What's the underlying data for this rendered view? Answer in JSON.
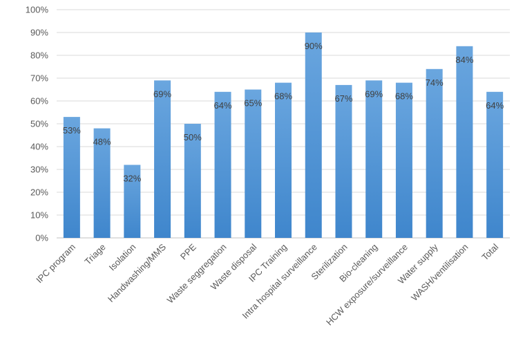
{
  "chart_data": {
    "type": "bar",
    "title": "",
    "xlabel": "",
    "ylabel": "",
    "ylim": [
      0,
      100
    ],
    "y_ticks": [
      "0%",
      "10%",
      "20%",
      "30%",
      "40%",
      "50%",
      "60%",
      "70%",
      "80%",
      "90%",
      "100%"
    ],
    "grid": true,
    "legend": "none",
    "bar_color": "#5B9BD5",
    "categories": [
      "IPC program",
      "Triage",
      "Isolation",
      "Handwashing/MMS",
      "PPE",
      "Waste seggregation",
      "Waste disposal",
      "IPC Training",
      "Intra hospital surveillance",
      "Sterilization",
      "Bio-cleaning",
      "HCW exposure/surveillance",
      "Water supply",
      "WASH/ventilisation",
      "Total"
    ],
    "values": [
      53,
      48,
      32,
      69,
      50,
      64,
      65,
      68,
      90,
      67,
      69,
      68,
      74,
      84,
      64
    ],
    "data_labels": [
      "53%",
      "48%",
      "32%",
      "69%",
      "50%",
      "64%",
      "65%",
      "68%",
      "90%",
      "67%",
      "69%",
      "68%",
      "74%",
      "84%",
      "64%"
    ]
  }
}
